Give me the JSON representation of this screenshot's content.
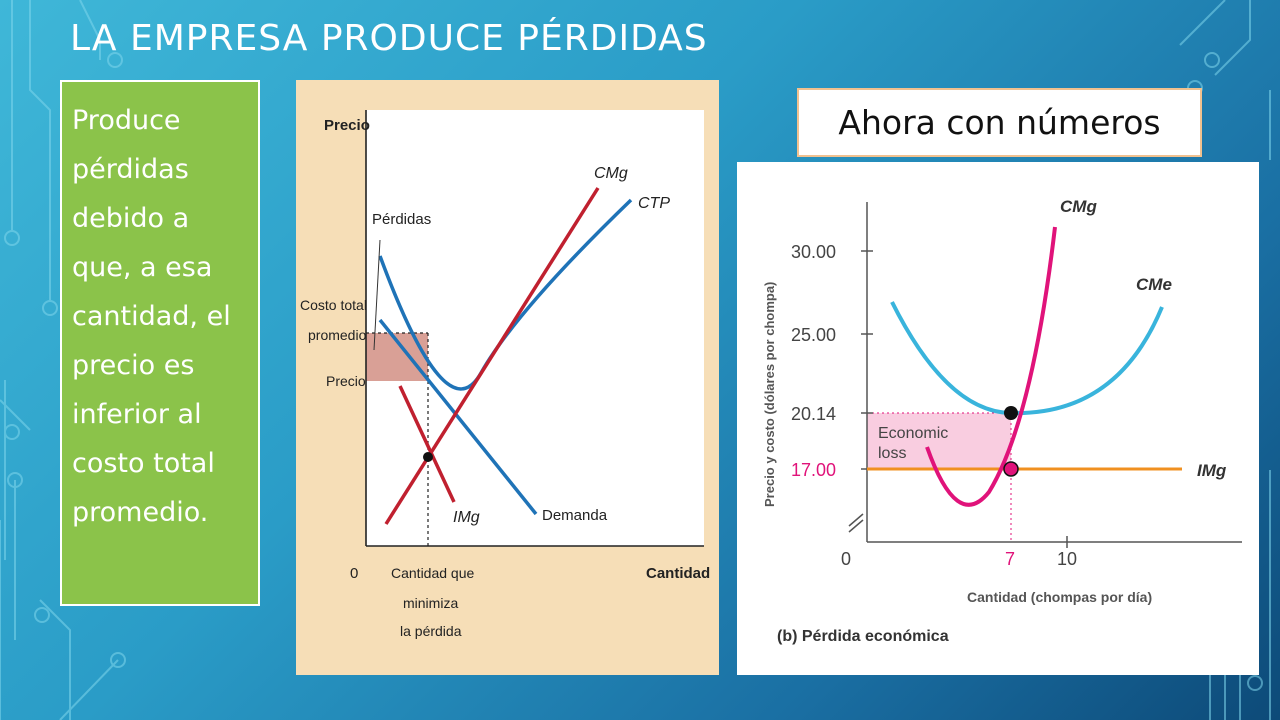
{
  "slide": {
    "title": "LA EMPRESA PRODUCE PÉRDIDAS",
    "explanation": "Produce pérdidas debido a que, a esa cantidad, el precio es inferior al costo total promedio.",
    "numbers_label": "Ahora con números"
  },
  "left_diagram": {
    "y_axis": "Precio",
    "x_axis": "Cantidad",
    "origin": "0",
    "curve_cmg": "CMg",
    "curve_ctp": "CTP",
    "curve_img": "IMg",
    "curve_demand": "Demanda",
    "losses": "Pérdidas",
    "atc_label_1": "Costo total",
    "atc_label_2": "promedio",
    "price_label": "Precio",
    "q_label_1": "Cantidad que",
    "q_label_2": "minimiza",
    "q_label_3": "la pérdida"
  },
  "right_diagram": {
    "y_axis": "Precio y costo (dólares por chompa)",
    "x_axis": "Cantidad (chompas por día)",
    "caption": "(b) Pérdida económica",
    "y_ticks": [
      "30.00",
      "25.00",
      "20.14",
      "17.00"
    ],
    "x_ticks": [
      "0",
      "7",
      "10"
    ],
    "curve_cmg": "CMg",
    "curve_cme": "CMe",
    "curve_img": "IMg",
    "loss_1": "Economic",
    "loss_2": "loss",
    "colors": {
      "mc": "#e0137a",
      "ac": "#39b4dc",
      "mr": "#f09020",
      "loss_fill": "#f9cde0"
    }
  }
}
